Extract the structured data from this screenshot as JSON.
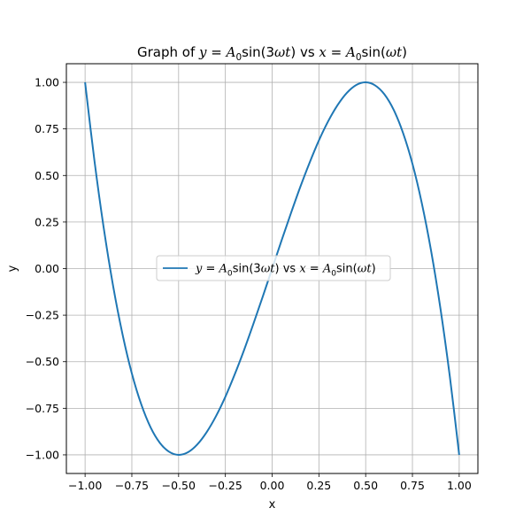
{
  "chart_data": {
    "type": "line",
    "title": {
      "prefix": "Graph of ",
      "math": [
        {
          "t": "y",
          "i": true
        },
        {
          "t": " = "
        },
        {
          "t": "A",
          "i": true
        },
        {
          "t": "0",
          "sub": true
        },
        {
          "t": "sin(3"
        },
        {
          "t": "ωt",
          "i": true
        },
        {
          "t": ")"
        },
        {
          "t": " vs "
        },
        {
          "t": "x",
          "i": true
        },
        {
          "t": " = "
        },
        {
          "t": "A",
          "i": true
        },
        {
          "t": "0",
          "sub": true
        },
        {
          "t": "sin("
        },
        {
          "t": "ωt",
          "i": true
        },
        {
          "t": ")"
        }
      ]
    },
    "xlabel": "x",
    "ylabel": "y",
    "xlim": [
      -1.1,
      1.1
    ],
    "ylim": [
      -1.1,
      1.1
    ],
    "xticks": [
      -1.0,
      -0.75,
      -0.5,
      -0.25,
      0.0,
      0.25,
      0.5,
      0.75,
      1.0
    ],
    "xtick_labels": [
      "−1.00",
      "−0.75",
      "−0.50",
      "−0.25",
      "0.00",
      "0.25",
      "0.50",
      "0.75",
      "1.00"
    ],
    "yticks": [
      -1.0,
      -0.75,
      -0.5,
      -0.25,
      0.0,
      0.25,
      0.5,
      0.75,
      1.0
    ],
    "ytick_labels": [
      "−1.00",
      "−0.75",
      "−0.50",
      "−0.25",
      "0.00",
      "0.25",
      "0.50",
      "0.75",
      "1.00"
    ],
    "grid": true,
    "legend": "center",
    "series": [
      {
        "name": "y = A0sin(3ωt) vs x = A0sin(ωt)",
        "name_math": [
          {
            "t": "y",
            "i": true
          },
          {
            "t": " = "
          },
          {
            "t": "A",
            "i": true
          },
          {
            "t": "0",
            "sub": true
          },
          {
            "t": "sin(3"
          },
          {
            "t": "ωt",
            "i": true
          },
          {
            "t": ")"
          },
          {
            "t": " vs "
          },
          {
            "t": "x",
            "i": true
          },
          {
            "t": " = "
          },
          {
            "t": "A",
            "i": true
          },
          {
            "t": "0",
            "sub": true
          },
          {
            "t": "sin("
          },
          {
            "t": "ωt",
            "i": true
          },
          {
            "t": ")"
          }
        ],
        "color": "#1f77b4",
        "x": [
          -1.0,
          -0.95,
          -0.9,
          -0.85,
          -0.8,
          -0.75,
          -0.7,
          -0.65,
          -0.6,
          -0.55,
          -0.5,
          -0.45,
          -0.4,
          -0.35,
          -0.3,
          -0.25,
          -0.2,
          -0.15,
          -0.1,
          -0.05,
          0.0,
          0.05,
          0.1,
          0.15,
          0.2,
          0.25,
          0.3,
          0.35,
          0.4,
          0.45,
          0.5,
          0.55,
          0.6,
          0.65,
          0.7,
          0.75,
          0.8,
          0.85,
          0.9,
          0.95,
          1.0
        ],
        "y": [
          1.0,
          0.58,
          0.216,
          -0.094,
          -0.352,
          -0.563,
          -0.728,
          -0.852,
          -0.936,
          -0.984,
          -1.0,
          -0.986,
          -0.944,
          -0.878,
          -0.792,
          -0.688,
          -0.568,
          -0.437,
          -0.296,
          -0.15,
          0.0,
          0.15,
          0.296,
          0.437,
          0.568,
          0.688,
          0.792,
          0.878,
          0.944,
          0.986,
          1.0,
          0.984,
          0.936,
          0.852,
          0.728,
          0.563,
          0.352,
          0.094,
          -0.216,
          -0.58,
          -1.0
        ]
      }
    ]
  }
}
